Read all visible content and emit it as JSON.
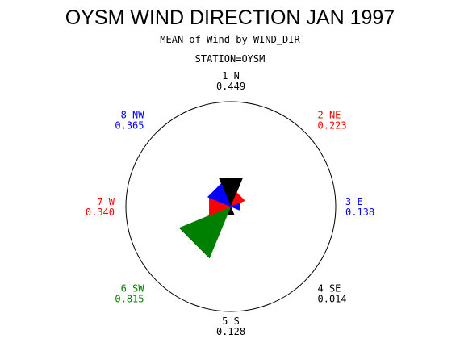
{
  "chart_data": {
    "type": "pie",
    "title": "OYSM WIND DIRECTION JAN 1997",
    "subtitle": "MEAN of Wind by WIND_DIR",
    "group_label": "STATION=OYSM",
    "colors": {
      "red": "#ff0000",
      "blue": "#0000ff",
      "green": "#008000",
      "black": "#000000"
    },
    "slices": [
      {
        "label": "1 N",
        "value": "0.449",
        "direction": 0,
        "color": "#000000"
      },
      {
        "label": "2 NE",
        "value": "0.223",
        "direction": 45,
        "color": "#ff0000"
      },
      {
        "label": "3 E",
        "value": "0.138",
        "direction": 90,
        "color": "#0000ff"
      },
      {
        "label": "4 SE",
        "value": "0.014",
        "direction": 135,
        "color": "#000000"
      },
      {
        "label": "5 S",
        "value": "0.128",
        "direction": 180,
        "color": "#000000"
      },
      {
        "label": "6 SW",
        "value": "0.815",
        "direction": 225,
        "color": "#008000"
      },
      {
        "label": "7 W",
        "value": "0.340",
        "direction": 270,
        "color": "#ff0000"
      },
      {
        "label": "8 NW",
        "value": "0.365",
        "direction": 315,
        "color": "#0000ff"
      }
    ]
  }
}
